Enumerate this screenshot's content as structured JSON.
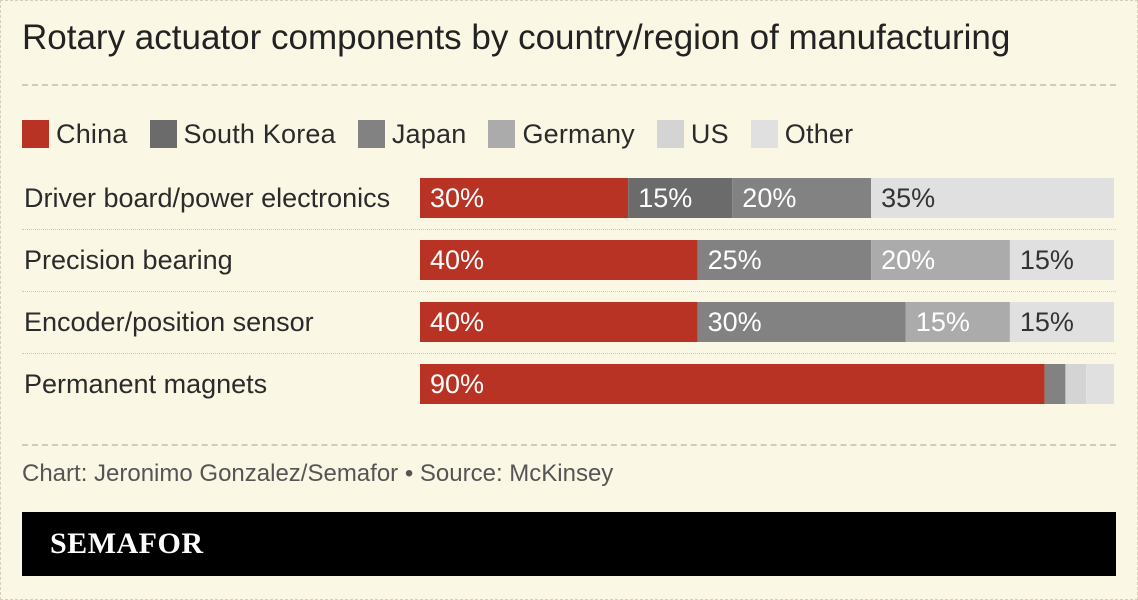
{
  "header": {
    "title": "Rotary actuator components by country/region of manufacturing"
  },
  "footer": {
    "source": "Chart: Jeronimo Gonzalez/Semafor • Source: McKinsey",
    "brand": "SEMAFOR"
  },
  "colors": {
    "background": "#fbf7e5",
    "brand_bar": "#000000"
  },
  "chart_data": {
    "type": "bar",
    "orientation": "horizontal",
    "stacked": true,
    "unit": "%",
    "title": "Rotary actuator components by country/region of manufacturing",
    "legend": {
      "position": "top-left"
    },
    "xlim": [
      0,
      100
    ],
    "grid": false,
    "categories": [
      "Driver board/power electronics",
      "Precision bearing",
      "Encoder/position sensor",
      "Permanent magnets"
    ],
    "series": [
      {
        "name": "China",
        "color": "#b83323",
        "values": [
          30,
          40,
          40,
          90
        ],
        "labels": [
          "30%",
          "40%",
          "40%",
          "90%"
        ],
        "label_color": "#ffffff"
      },
      {
        "name": "South Korea",
        "color": "#6b6b6b",
        "values": [
          15,
          0,
          0,
          0
        ],
        "labels": [
          "15%",
          "",
          "",
          ""
        ],
        "label_color": "#ffffff"
      },
      {
        "name": "Japan",
        "color": "#828282",
        "values": [
          20,
          25,
          30,
          3
        ],
        "labels": [
          "20%",
          "25%",
          "30%",
          ""
        ],
        "label_color": "#ffffff"
      },
      {
        "name": "Germany",
        "color": "#ababab",
        "values": [
          0,
          20,
          15,
          0
        ],
        "labels": [
          "",
          "20%",
          "15%",
          ""
        ],
        "label_color": "#ffffff"
      },
      {
        "name": "US",
        "color": "#d4d4d4",
        "values": [
          0,
          0,
          0,
          3
        ],
        "labels": [
          "",
          "",
          "",
          ""
        ],
        "label_color": "#333333"
      },
      {
        "name": "Other",
        "color": "#e0e0e0",
        "values": [
          35,
          15,
          15,
          4
        ],
        "labels": [
          "35%",
          "15%",
          "15%",
          ""
        ],
        "label_color": "#333333"
      }
    ]
  }
}
